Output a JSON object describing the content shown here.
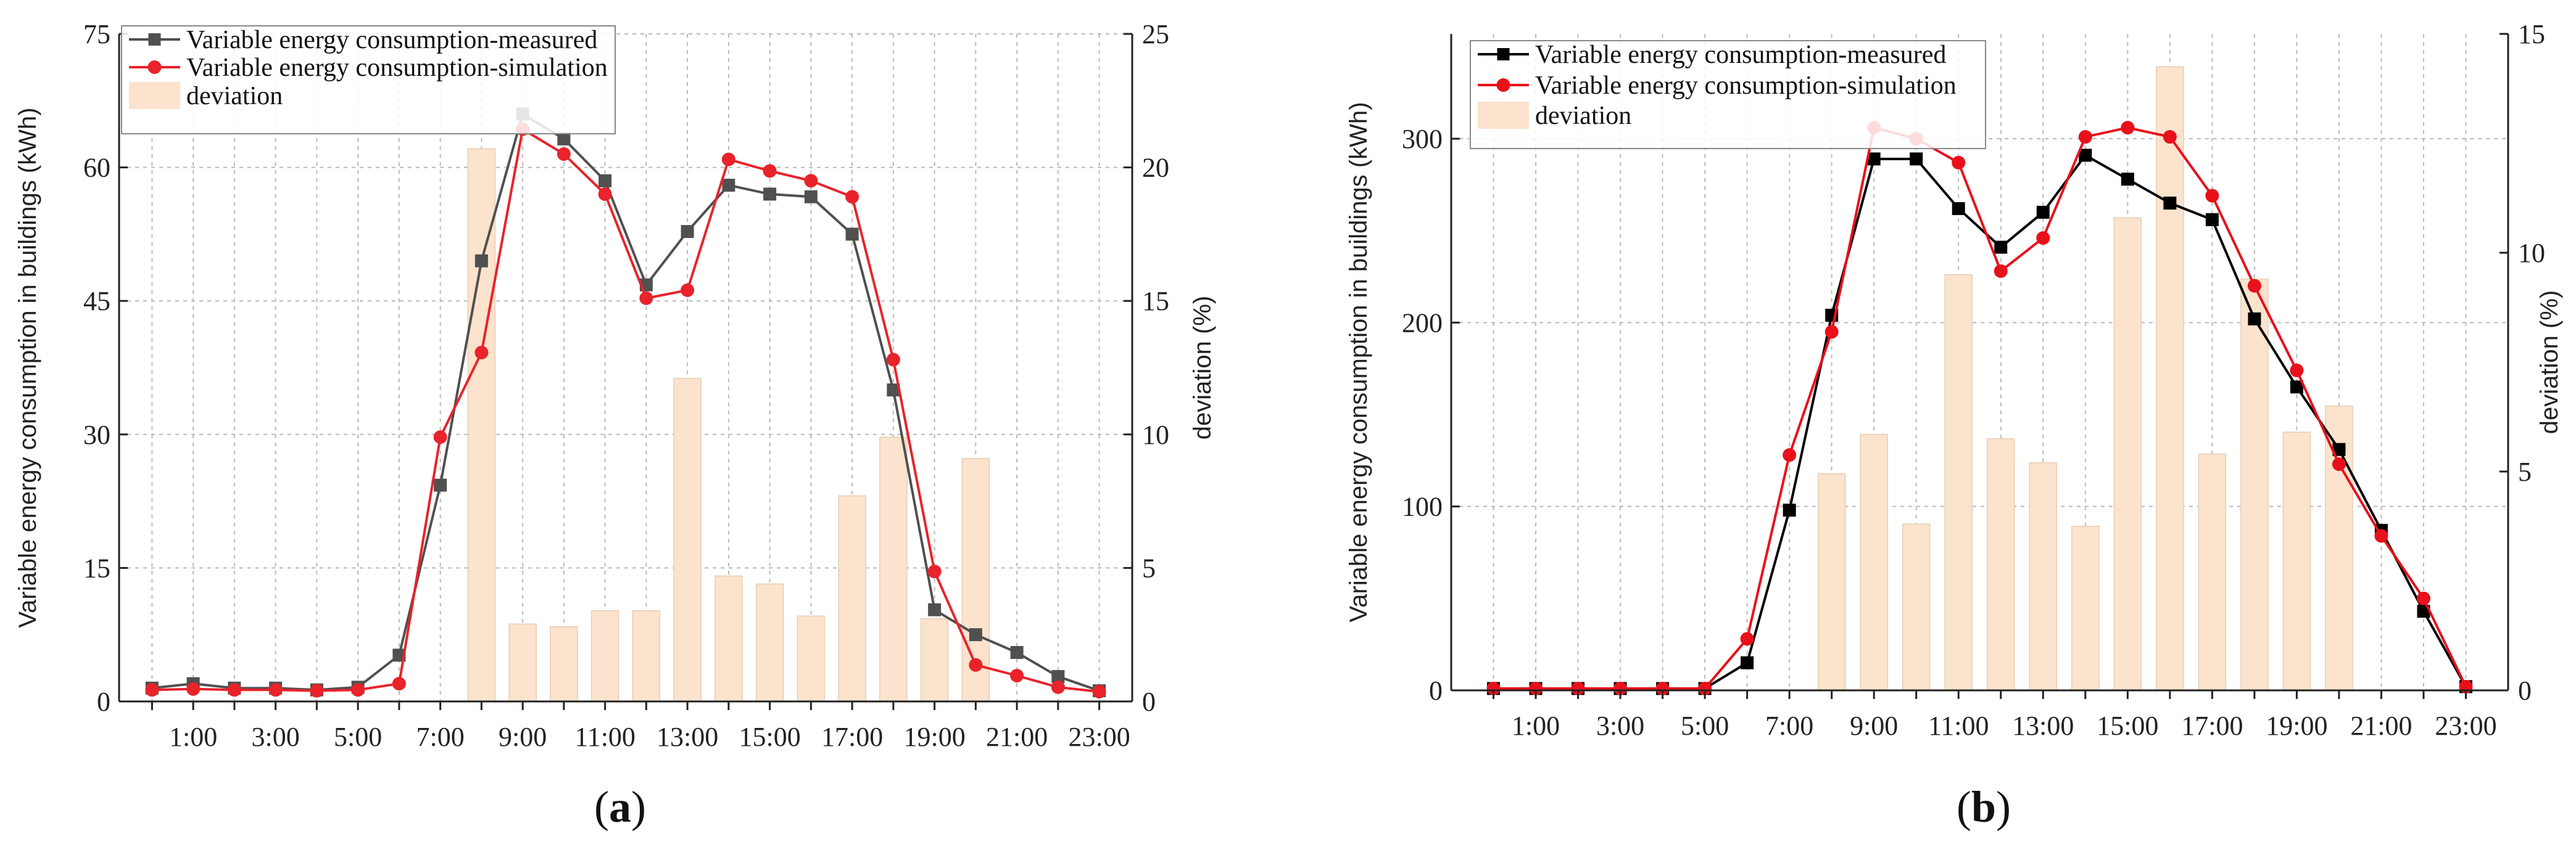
{
  "chart_data": [
    {
      "type": "line+bar",
      "panel_label": "a",
      "xlabel": "",
      "ylabel": "Variable energy consumption in buildings (kWh)",
      "y2label": "deviation (%)",
      "ylim": [
        0,
        75
      ],
      "y2lim": [
        0,
        25
      ],
      "yticks": [
        0,
        15,
        30,
        45,
        60,
        75
      ],
      "y2ticks": [
        0,
        5,
        10,
        15,
        20,
        25
      ],
      "xlim": [
        -0.8,
        23.8
      ],
      "xtick_values": [
        1,
        3,
        5,
        7,
        9,
        11,
        13,
        15,
        17,
        19,
        21,
        23
      ],
      "xtick_labels": [
        "1:00",
        "3:00",
        "5:00",
        "7:00",
        "9:00",
        "11:00",
        "13:00",
        "15:00",
        "17:00",
        "19:00",
        "21:00",
        "23:00"
      ],
      "grid": true,
      "legend_position": "top-left",
      "measured_color": "#505050",
      "simulation_color": "#e8232a",
      "bar_color": "#fbe3cd",
      "x": [
        0,
        1,
        2,
        3,
        4,
        5,
        6,
        7,
        8,
        9,
        10,
        11,
        12,
        13,
        14,
        15,
        16,
        17,
        18,
        19,
        20,
        21,
        22,
        23
      ],
      "series": [
        {
          "name": "Variable energy consumption-measured",
          "marker": "square",
          "values": [
            1.5,
            2.0,
            1.5,
            1.5,
            1.3,
            1.6,
            5.2,
            24.3,
            49.5,
            66.0,
            63.2,
            58.5,
            46.8,
            52.8,
            58.0,
            57.0,
            56.7,
            52.5,
            35.0,
            10.3,
            7.5,
            5.5,
            2.8,
            1.2
          ]
        },
        {
          "name": "Variable energy consumption-simulation",
          "marker": "circle",
          "values": [
            1.3,
            1.4,
            1.3,
            1.3,
            1.2,
            1.3,
            2.0,
            29.7,
            39.2,
            64.3,
            61.5,
            57.0,
            45.3,
            46.2,
            60.9,
            59.6,
            58.5,
            56.7,
            38.4,
            14.6,
            4.1,
            2.9,
            1.6,
            1.1
          ]
        }
      ],
      "deviation": {
        "name": "deviation",
        "x": [
          8,
          9,
          10,
          11,
          12,
          13,
          14,
          15,
          16,
          17,
          18,
          19,
          20
        ],
        "values": [
          20.7,
          2.9,
          2.8,
          3.4,
          3.4,
          12.1,
          4.7,
          4.4,
          3.2,
          7.7,
          9.9,
          3.1,
          9.1
        ]
      }
    },
    {
      "type": "line+bar",
      "panel_label": "b",
      "xlabel": "",
      "ylabel": "Variable energy consumption in buildings (kWh)",
      "y2label": "deviation (%)",
      "ylim": [
        0,
        357
      ],
      "y2lim": [
        0,
        15
      ],
      "yticks": [
        0,
        100,
        200,
        300
      ],
      "y2ticks": [
        0,
        5,
        10,
        15
      ],
      "xlim": [
        -1.0,
        24.0
      ],
      "xtick_values": [
        1,
        3,
        5,
        7,
        9,
        11,
        13,
        15,
        17,
        19,
        21,
        23
      ],
      "xtick_labels": [
        "1:00",
        "3:00",
        "5:00",
        "7:00",
        "9:00",
        "11:00",
        "13:00",
        "15:00",
        "17:00",
        "19:00",
        "21:00",
        "23:00"
      ],
      "grid": true,
      "legend_position": "top-left",
      "measured_color": "#000000",
      "simulation_color": "#e8101a",
      "bar_color": "#fbe3cd",
      "x": [
        0,
        1,
        2,
        3,
        4,
        5,
        6,
        7,
        8,
        9,
        10,
        11,
        12,
        13,
        14,
        15,
        16,
        17,
        18,
        19,
        20,
        21,
        22,
        23
      ],
      "series": [
        {
          "name": "Variable energy consumption-measured",
          "marker": "square",
          "values": [
            1,
            1,
            1,
            1,
            1,
            1,
            15,
            98,
            204,
            289,
            289,
            262,
            241,
            260,
            291,
            278,
            265,
            256,
            202,
            165,
            131,
            87,
            43,
            2
          ]
        },
        {
          "name": "Variable energy consumption-simulation",
          "marker": "circle",
          "values": [
            1,
            1,
            1,
            1,
            1,
            1,
            28,
            128,
            195,
            306,
            300,
            287,
            228,
            246,
            301,
            306,
            301,
            269,
            220,
            174,
            123,
            84,
            50,
            2
          ]
        }
      ],
      "deviation": {
        "name": "deviation",
        "x": [
          8,
          9,
          10,
          11,
          12,
          13,
          14,
          15,
          16,
          17,
          18,
          19,
          20
        ],
        "values": [
          4.95,
          5.85,
          3.8,
          9.5,
          5.75,
          5.2,
          3.75,
          10.8,
          14.25,
          5.4,
          9.4,
          5.9,
          6.5
        ]
      }
    }
  ]
}
